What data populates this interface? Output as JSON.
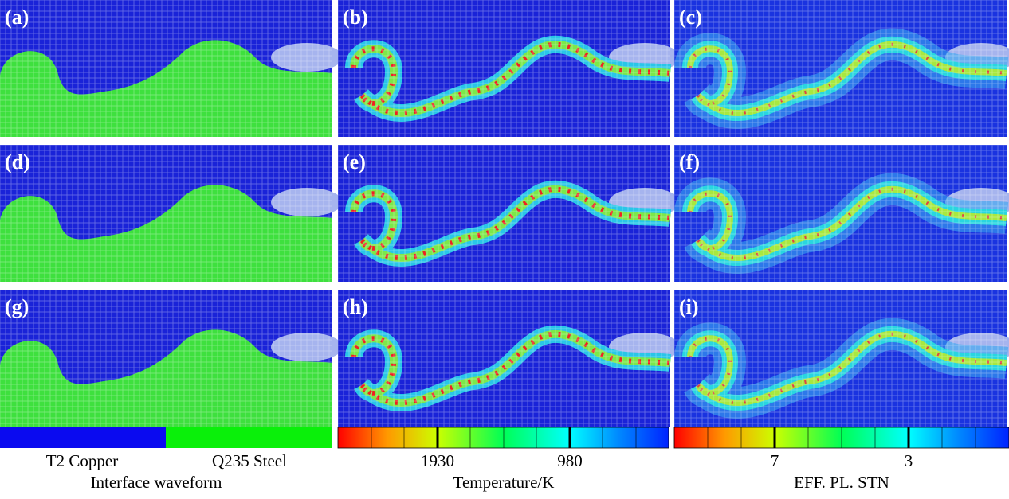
{
  "panels": [
    {
      "label": "(a)"
    },
    {
      "label": "(b)"
    },
    {
      "label": "(c)"
    },
    {
      "label": "(d)"
    },
    {
      "label": "(e)"
    },
    {
      "label": "(f)"
    },
    {
      "label": "(g)"
    },
    {
      "label": "(h)"
    },
    {
      "label": "(i)"
    }
  ],
  "legends": [
    {
      "items": [
        "T2 Copper",
        "Q235 Steel"
      ],
      "title": "Interface waveform"
    },
    {
      "ticks": [
        1930,
        980
      ],
      "title": "Temperature/K"
    },
    {
      "ticks": [
        7,
        3
      ],
      "title": "EFF. PL. STN"
    }
  ]
}
